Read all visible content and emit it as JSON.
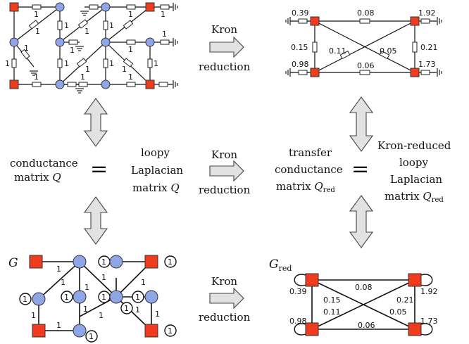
{
  "colors": {
    "boundary_node": "#f03c1e",
    "interior_node": "#8ea6e8",
    "arrow_fill": "#e2e2e2"
  },
  "arrows": {
    "kron_word": "Kron",
    "reduction_word": "reduction"
  },
  "middle": {
    "left_line1": "conductance",
    "left_line2": "matrix",
    "left_var": "Q",
    "mid_line1": "loopy",
    "mid_line2": "Laplacian",
    "mid_line3": "matrix",
    "mid_var": "Q",
    "right_line1": "transfer",
    "right_line2": "conductance",
    "right_line3": "matrix",
    "right_var": "Q",
    "right_sub": "red",
    "far_line1": "Kron-reduced",
    "far_line2": "loopy",
    "far_line3": "Laplacian",
    "far_line4": "matrix",
    "far_var": "Q",
    "far_sub": "red",
    "equals": "="
  },
  "graph_labels": {
    "g": "G",
    "g_red": "G",
    "g_red_sub": "red"
  },
  "unit_weight": "1",
  "reduced_weights": {
    "top_left_ground": "0.39",
    "top_right_ground": "1.92",
    "bottom_left_ground": "0.98",
    "bottom_right_ground": "1.73",
    "top_edge": "0.08",
    "left_edge": "0.15",
    "right_edge": "0.21",
    "bottom_edge": "0.06",
    "diag_a": "0.11",
    "diag_b": "0.05"
  }
}
